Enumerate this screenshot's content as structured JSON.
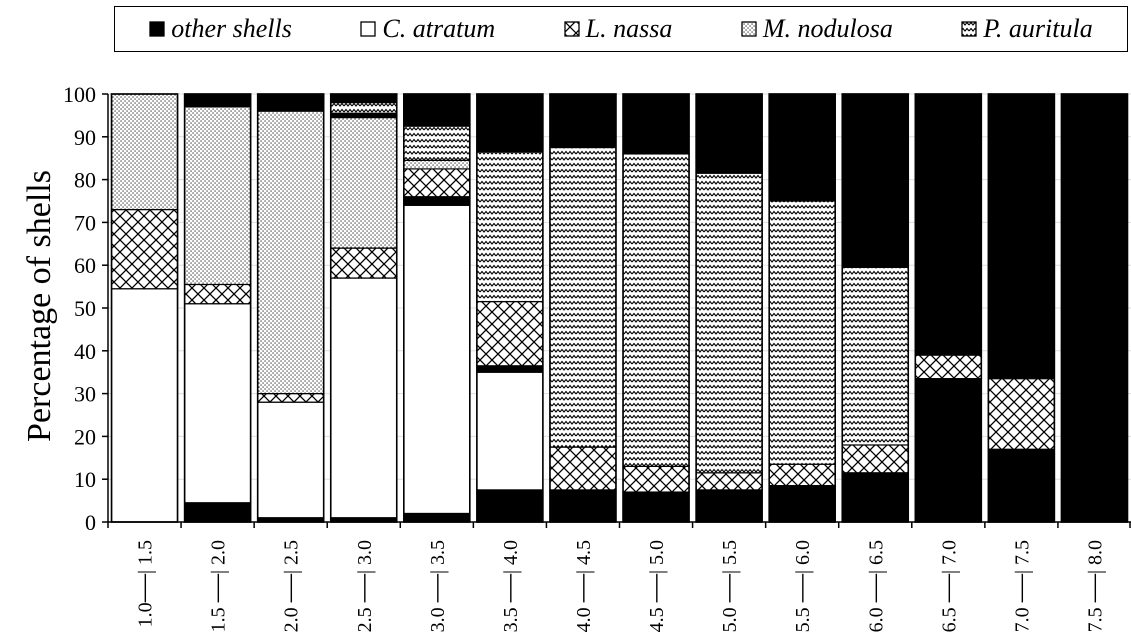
{
  "chart_data": {
    "type": "bar",
    "stacked": true,
    "ylabel": "Percentage of shells",
    "ylim": [
      0,
      100
    ],
    "yticks": [
      0,
      10,
      20,
      30,
      40,
      50,
      60,
      70,
      80,
      90,
      100
    ],
    "categories": [
      "1.0──| 1.5",
      "1.5 ──| 2.0",
      "2.0 ──| 2.5",
      "2.5 ──| 3.0",
      "3.0 ──| 3.5",
      "3.5 ──| 4.0",
      "4.0 ──| 4.5",
      "4.5 ──| 5.0",
      "5.0 ──| 5.5",
      "5.5 ──| 6.0",
      "6.0 ──| 6.5",
      "6.5 ──| 7.0",
      "7.0 ──| 7.5",
      "7.5 ──| 8.0"
    ],
    "legend_position": "top",
    "series": [
      {
        "name": "other shells",
        "pattern": "solid-black",
        "values": [
          0,
          4.5,
          1,
          1,
          2,
          7.5,
          7,
          7,
          7.5,
          8.5,
          11.5,
          33.5,
          17,
          100
        ]
      },
      {
        "name": "C. atratum",
        "pattern": "white",
        "values": [
          54.5,
          46.5,
          27,
          56,
          72,
          27.5,
          0,
          0,
          0,
          0,
          0,
          0,
          0,
          0
        ]
      },
      {
        "name": "other shells",
        "pattern": "solid-black",
        "values": [
          0,
          0,
          0,
          0,
          2,
          1.5,
          0.5,
          0,
          0,
          0,
          0,
          0,
          0,
          0
        ]
      },
      {
        "name": "L. nassa",
        "pattern": "crosshatch",
        "values": [
          18.5,
          4.5,
          2,
          7,
          6.5,
          15,
          10,
          6,
          4,
          5,
          6.5,
          5.5,
          16.5,
          0
        ]
      },
      {
        "name": "M. nodulosa",
        "pattern": "dots",
        "values": [
          27,
          41.5,
          66,
          30.5,
          2,
          0,
          0,
          0,
          0,
          0,
          0,
          0,
          0,
          0
        ]
      },
      {
        "name": "other shells",
        "pattern": "solid-black",
        "values": [
          0,
          0,
          0,
          1,
          0,
          0,
          0,
          0,
          0,
          0,
          0,
          0,
          0,
          0
        ]
      },
      {
        "name": "P. auritula",
        "pattern": "zigzag",
        "values": [
          0,
          0,
          0,
          2.5,
          8,
          35,
          70,
          73,
          70,
          61.5,
          41.5,
          0,
          0,
          0
        ]
      },
      {
        "name": "other shells",
        "pattern": "solid-black",
        "values": [
          0,
          3,
          4,
          2,
          7.5,
          13.5,
          12.5,
          14,
          18.5,
          25,
          40.5,
          61,
          66.5,
          0
        ]
      }
    ]
  },
  "legend": [
    {
      "label": "other shells",
      "pattern": "solid-black"
    },
    {
      "label": "C. atratum",
      "pattern": "white"
    },
    {
      "label": "L. nassa",
      "pattern": "crosshatch"
    },
    {
      "label": "M. nodulosa",
      "pattern": "dots"
    },
    {
      "label": "P. auritula",
      "pattern": "zigzag"
    }
  ]
}
